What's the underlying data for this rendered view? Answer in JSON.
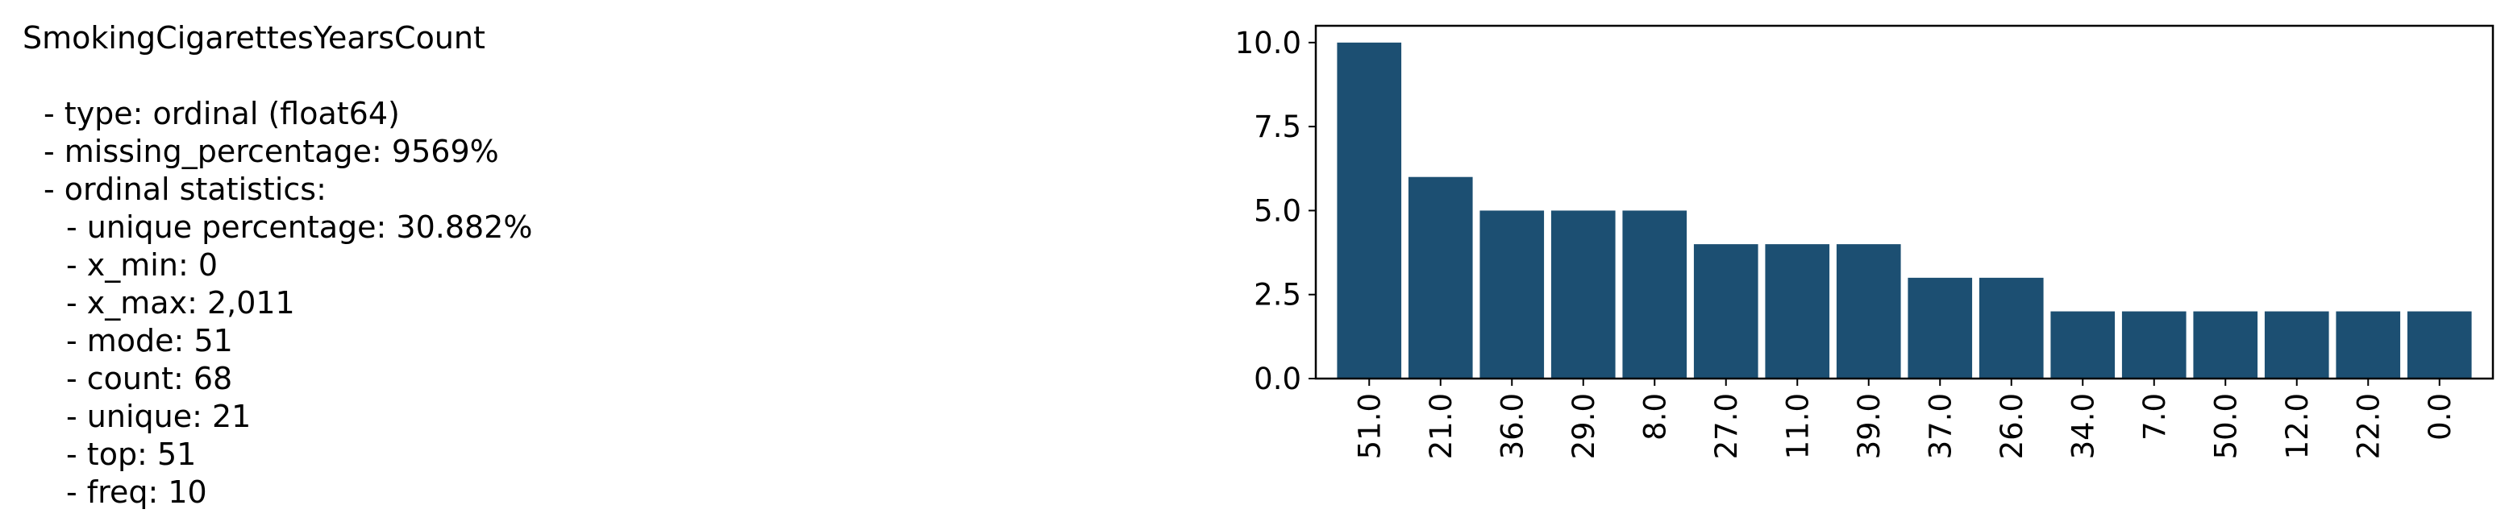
{
  "stats": {
    "title": "SmokingCigarettesYearsCount",
    "type": "- type: ordinal (float64)",
    "missing": "- missing_percentage: 9569%",
    "ordinal_header": "- ordinal statistics:",
    "unique_pct": "- unique percentage: 30.882%",
    "x_min": "- x_min: 0",
    "x_max": "- x_max: 2,011",
    "mode": "- mode: 51",
    "count": "- count: 68",
    "unique": "- unique: 21",
    "top": "- top: 51",
    "freq": "- freq: 10"
  },
  "chart_data": {
    "type": "bar",
    "categories": [
      "51.0",
      "21.0",
      "36.0",
      "29.0",
      "8.0",
      "27.0",
      "11.0",
      "39.0",
      "37.0",
      "26.0",
      "34.0",
      "7.0",
      "50.0",
      "12.0",
      "22.0",
      "0.0"
    ],
    "values": [
      10,
      6,
      5,
      5,
      5,
      4,
      4,
      4,
      3,
      3,
      2,
      2,
      2,
      2,
      2,
      2
    ],
    "yticks": [
      "0.0",
      "2.5",
      "5.0",
      "7.5",
      "10.0"
    ],
    "ylim": [
      0,
      10.5
    ],
    "bar_color": "#1c4f72",
    "grid": false,
    "title": "",
    "xlabel": "",
    "ylabel": ""
  }
}
